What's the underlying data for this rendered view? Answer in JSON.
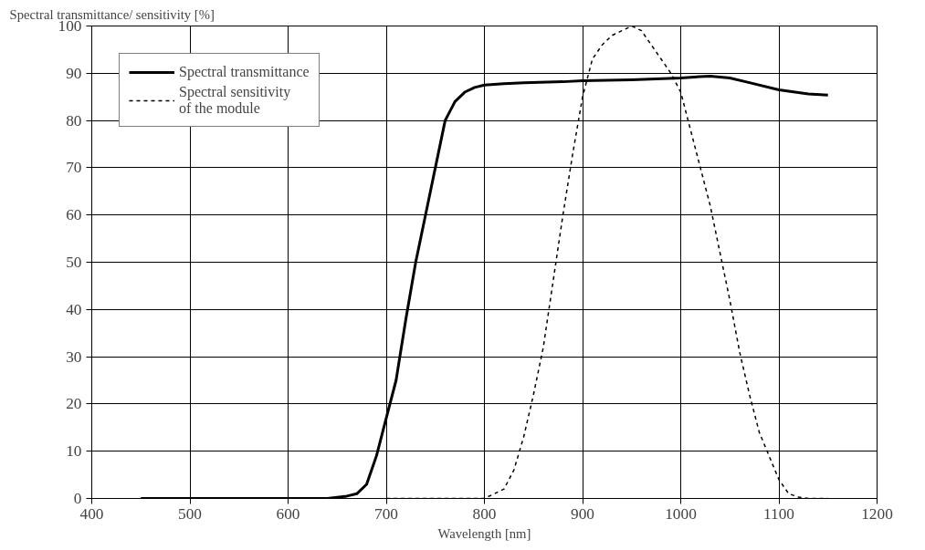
{
  "chart_data": {
    "type": "line",
    "xlabel": "Wavelength [nm]",
    "ylabel": "Spectral transmittance/ sensitivity [%]",
    "xlim": [
      400,
      1200
    ],
    "xticks": [
      400,
      500,
      600,
      700,
      800,
      900,
      1000,
      1100,
      1200
    ],
    "ylim": [
      0,
      100
    ],
    "yticks": [
      0,
      10,
      20,
      30,
      40,
      50,
      60,
      70,
      80,
      90,
      100
    ],
    "grid": true,
    "legend": "top left",
    "series": [
      {
        "name": "Spectral transmittance",
        "color": "#000000",
        "line_style": "solid",
        "x": [
          450,
          500,
          550,
          600,
          640,
          660,
          670,
          680,
          690,
          700,
          710,
          720,
          730,
          740,
          750,
          760,
          770,
          780,
          790,
          800,
          820,
          840,
          880,
          900,
          950,
          1000,
          1020,
          1030,
          1050,
          1070,
          1100,
          1130,
          1150
        ],
        "values": [
          0,
          0,
          0,
          0,
          0,
          0.5,
          1,
          3,
          9,
          17,
          25,
          38,
          50,
          60,
          70,
          80,
          84,
          86,
          87,
          87.5,
          87.8,
          88,
          88.2,
          88.4,
          88.6,
          89,
          89.3,
          89.4,
          89,
          88,
          86.5,
          85.6,
          85.4
        ]
      },
      {
        "name": "Spectral sensitivity\nof the module",
        "color": "#000000",
        "line_style": "dotted",
        "x": [
          700,
          750,
          800,
          810,
          820,
          830,
          840,
          850,
          860,
          870,
          880,
          890,
          900,
          910,
          920,
          930,
          940,
          950,
          960,
          970,
          980,
          990,
          1000,
          1010,
          1020,
          1030,
          1040,
          1050,
          1060,
          1070,
          1080,
          1090,
          1100,
          1110,
          1120,
          1130,
          1150
        ],
        "values": [
          0,
          0,
          0,
          1,
          2,
          6,
          13,
          22,
          32,
          46,
          60,
          73,
          85,
          93,
          96,
          98,
          99,
          100,
          99,
          96,
          93,
          90,
          86,
          78,
          70,
          62,
          52,
          42,
          31,
          22,
          14,
          9,
          4,
          1,
          0.3,
          0,
          0
        ]
      }
    ]
  }
}
